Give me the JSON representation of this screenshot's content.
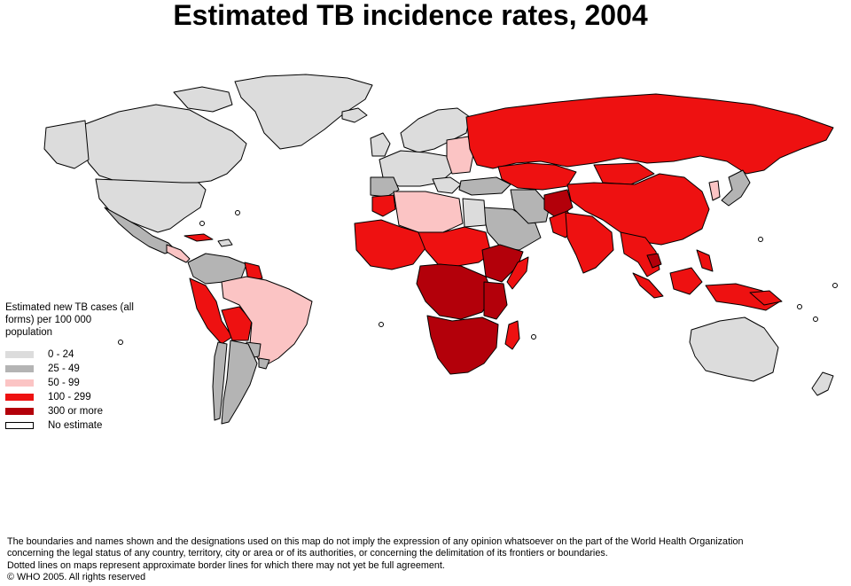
{
  "title": "Estimated TB incidence rates, 2004",
  "legend": {
    "title": "Estimated new TB cases (all forms) per 100 000 population",
    "classes": [
      {
        "label": "0 - 24",
        "color": "#dcdcdc"
      },
      {
        "label": "25 - 49",
        "color": "#b4b4b4"
      },
      {
        "label": "50 - 99",
        "color": "#fbc4c4"
      },
      {
        "label": "100 - 299",
        "color": "#ee1111"
      },
      {
        "label": "300 or more",
        "color": "#b3000a"
      },
      {
        "label": "No estimate",
        "color": "#ffffff"
      }
    ]
  },
  "disclaimer": {
    "line1": "The boundaries and names shown and the designations used on this map do not imply the expression of any opinion whatsoever on the part of the World Health Organization",
    "line2": "concerning the legal status of any country, territory, city or area or of its authorities, or concerning the delimitation of its frontiers or boundaries.",
    "line3": "Dotted lines on maps represent approximate border lines for which there may not yet be full agreement.",
    "copyright": "© WHO 2005. All rights reserved"
  }
}
